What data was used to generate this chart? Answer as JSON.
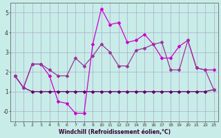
{
  "title": "",
  "xlabel": "Windchill (Refroidissement éolien,°C)",
  "ylabel": "",
  "background_color": "#c8ece8",
  "grid_color": "#aaaacc",
  "xlim": [
    -0.5,
    23.5
  ],
  "ylim": [
    -0.5,
    5.5
  ],
  "yticks": [
    0,
    1,
    2,
    3,
    4,
    5
  ],
  "ytick_labels": [
    "-0",
    "1",
    "2",
    "3",
    "4",
    "5"
  ],
  "xticks": [
    0,
    1,
    2,
    3,
    4,
    5,
    6,
    7,
    8,
    9,
    10,
    11,
    12,
    13,
    14,
    15,
    16,
    17,
    18,
    19,
    20,
    21,
    22,
    23
  ],
  "series_flat_x": [
    0,
    1,
    2,
    3,
    4,
    5,
    6,
    7,
    8,
    9,
    10,
    11,
    12,
    13,
    14,
    15,
    16,
    17,
    18,
    19,
    20,
    21,
    22,
    23
  ],
  "series_flat_y": [
    1.8,
    1.2,
    1.0,
    1.0,
    1.0,
    1.0,
    1.0,
    1.0,
    1.0,
    1.0,
    1.0,
    1.0,
    1.0,
    1.0,
    1.0,
    1.0,
    1.0,
    1.0,
    1.0,
    1.0,
    1.0,
    1.0,
    1.0,
    1.1
  ],
  "series_peak_x": [
    0,
    1,
    2,
    3,
    4,
    5,
    6,
    7,
    8,
    9,
    10,
    11,
    12,
    13,
    14,
    15,
    16,
    17,
    18,
    19,
    20,
    21,
    22,
    23
  ],
  "series_peak_y": [
    1.8,
    1.2,
    2.4,
    2.4,
    1.8,
    0.5,
    0.4,
    -0.1,
    -0.1,
    3.4,
    5.2,
    4.4,
    4.5,
    3.5,
    3.6,
    3.9,
    3.4,
    2.7,
    2.7,
    3.3,
    3.6,
    2.2,
    2.1,
    2.1
  ],
  "series_mid_x": [
    0,
    1,
    2,
    3,
    4,
    5,
    6,
    7,
    8,
    9,
    10,
    11,
    12,
    13,
    14,
    15,
    16,
    17,
    18,
    19,
    20,
    21,
    22,
    23
  ],
  "series_mid_y": [
    1.8,
    1.2,
    2.4,
    2.4,
    2.1,
    1.8,
    1.8,
    2.7,
    2.3,
    2.8,
    3.4,
    3.0,
    2.3,
    2.3,
    3.1,
    3.2,
    3.4,
    3.5,
    2.1,
    2.1,
    3.6,
    2.2,
    2.1,
    1.1
  ],
  "color_dark": "#660066",
  "color_bright": "#cc00cc",
  "color_mid": "#993399"
}
